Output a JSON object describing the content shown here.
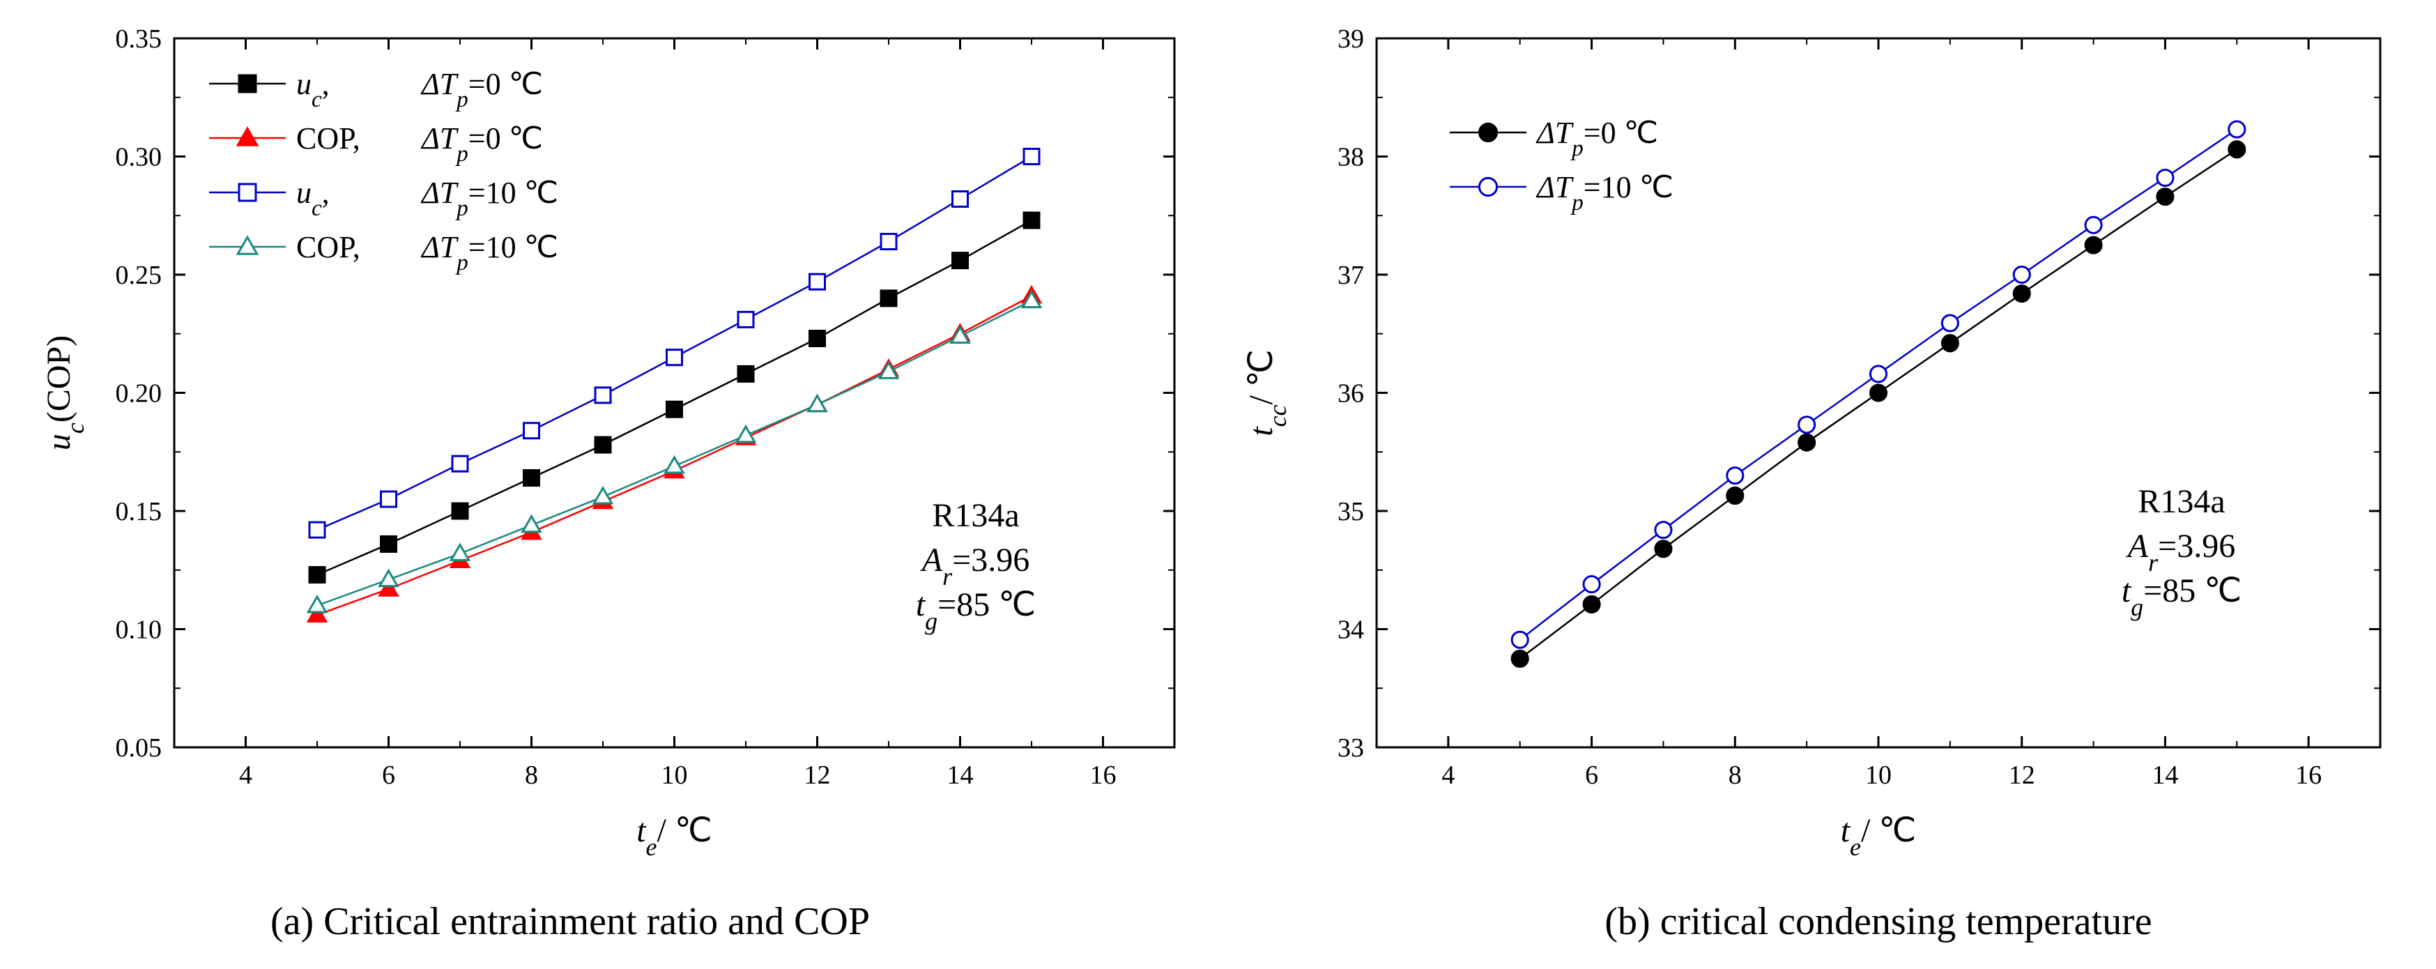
{
  "chart_data": [
    {
      "type": "line",
      "caption": "(a)  Critical entrainment ratio and COP",
      "xlabel": {
        "main": "t",
        "sub": "e",
        "unit": "/ ℃"
      },
      "ylabel": {
        "main": "u",
        "sub": "c",
        "rest": "(COP)"
      },
      "xlim": [
        3,
        17
      ],
      "ylim": [
        0.05,
        0.35
      ],
      "xticks": [
        4,
        6,
        8,
        10,
        12,
        14,
        16
      ],
      "yticks": [
        0.05,
        0.1,
        0.15,
        0.2,
        0.25,
        0.3,
        0.35
      ],
      "ytick_format": 2,
      "legend_position": "top-left",
      "grid": false,
      "x": [
        5,
        6,
        7,
        8,
        9,
        10,
        11,
        12,
        13,
        14,
        15
      ],
      "series": [
        {
          "name": "uc, ΔTp=0 ℃",
          "legend": {
            "lead": "u",
            "lead_sub": "c",
            "lead_tail": ",",
            "dT": "ΔT",
            "dT_sub": "p",
            "value": "=0 ℃"
          },
          "marker": "square-filled",
          "color": "#000000",
          "values": [
            0.123,
            0.136,
            0.15,
            0.164,
            0.178,
            0.193,
            0.208,
            0.223,
            0.24,
            0.256,
            0.273
          ]
        },
        {
          "name": "COP, ΔTp=0 ℃",
          "legend": {
            "lead": "COP,",
            "dT": "ΔT",
            "dT_sub": "p",
            "value": "=0 ℃"
          },
          "marker": "triangle-filled",
          "color": "#ff0000",
          "values": [
            0.106,
            0.117,
            0.129,
            0.141,
            0.154,
            0.167,
            0.181,
            0.195,
            0.21,
            0.225,
            0.241
          ]
        },
        {
          "name": "uc, ΔTp=10 ℃",
          "legend": {
            "lead": "u",
            "lead_sub": "c",
            "lead_tail": ",",
            "dT": "ΔT",
            "dT_sub": "p",
            "value": "=10 ℃"
          },
          "marker": "square-open",
          "color": "#0000cc",
          "values": [
            0.142,
            0.155,
            0.17,
            0.184,
            0.199,
            0.215,
            0.231,
            0.247,
            0.264,
            0.282,
            0.3
          ]
        },
        {
          "name": "COP, ΔTp=10 ℃",
          "legend": {
            "lead": "COP,",
            "dT": "ΔT",
            "dT_sub": "p",
            "value": "=10 ℃"
          },
          "marker": "triangle-open",
          "color": "#1a8a80",
          "values": [
            0.11,
            0.121,
            0.132,
            0.144,
            0.156,
            0.169,
            0.182,
            0.195,
            0.209,
            0.224,
            0.239
          ]
        }
      ],
      "annotations": [
        {
          "plain": "R134a"
        },
        {
          "main": "A",
          "sub": "r",
          "rest": "=3.96"
        },
        {
          "main": "t",
          "sub": "g",
          "rest": "=85 ℃"
        }
      ]
    },
    {
      "type": "line",
      "caption": "(b)  critical condensing temperature",
      "xlabel": {
        "main": "t",
        "sub": "e",
        "unit": "/ ℃"
      },
      "ylabel": {
        "main": "t",
        "sub": "cc",
        "rest": "/ ℃"
      },
      "xlim": [
        3,
        17
      ],
      "ylim": [
        33,
        39
      ],
      "xticks": [
        4,
        6,
        8,
        10,
        12,
        14,
        16
      ],
      "yticks": [
        33,
        34,
        35,
        36,
        37,
        38,
        39
      ],
      "ytick_format": 0,
      "legend_position": "top-left",
      "grid": false,
      "x": [
        5,
        6,
        7,
        8,
        9,
        10,
        11,
        12,
        13,
        14,
        15
      ],
      "series": [
        {
          "name": "ΔTp=0 ℃",
          "legend": {
            "lead": "",
            "dT": "ΔT",
            "dT_sub": "p",
            "value": "=0 ℃"
          },
          "marker": "circle-filled",
          "color": "#000000",
          "values": [
            33.75,
            34.21,
            34.68,
            35.13,
            35.58,
            36.0,
            36.42,
            36.84,
            37.25,
            37.66,
            38.06
          ]
        },
        {
          "name": "ΔTp=10 ℃",
          "legend": {
            "lead": "",
            "dT": "ΔT",
            "dT_sub": "p",
            "value": "=10 ℃"
          },
          "marker": "circle-open",
          "color": "#0000cc",
          "values": [
            33.91,
            34.38,
            34.84,
            35.3,
            35.73,
            36.16,
            36.59,
            37.0,
            37.42,
            37.82,
            38.23
          ]
        }
      ],
      "annotations": [
        {
          "plain": "R134a"
        },
        {
          "main": "A",
          "sub": "r",
          "rest": "=3.96"
        },
        {
          "main": "t",
          "sub": "g",
          "rest": "=85 ℃"
        }
      ]
    }
  ]
}
